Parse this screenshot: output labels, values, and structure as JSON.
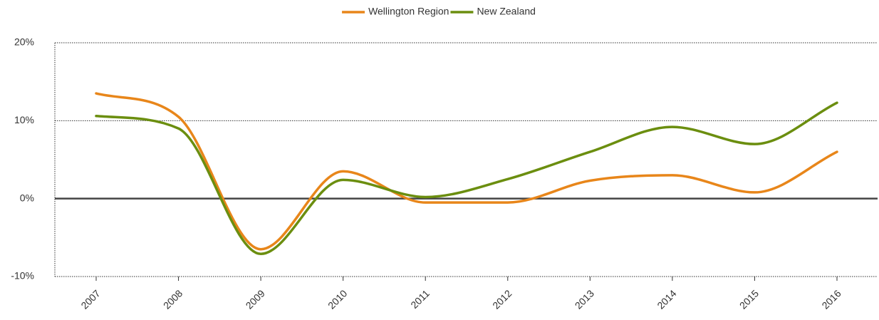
{
  "chart_data": {
    "type": "line",
    "categories": [
      "2007",
      "2008",
      "2009",
      "2010",
      "2011",
      "2012",
      "2013",
      "2014",
      "2015",
      "2016"
    ],
    "series": [
      {
        "name": "Wellington Region",
        "color": "#e8861a",
        "values": [
          13.5,
          10.5,
          -6.5,
          3.5,
          -0.5,
          -0.5,
          2.3,
          3,
          0.8,
          6
        ]
      },
      {
        "name": "New Zealand",
        "color": "#6b8e0f",
        "values": [
          10.6,
          9,
          -7.1,
          2.4,
          0.2,
          2.5,
          6,
          9.2,
          7,
          12.3
        ]
      }
    ],
    "ylim": [
      -10,
      20
    ],
    "yticks": [
      {
        "value": -10,
        "label": "-10%"
      },
      {
        "value": 0,
        "label": "0%"
      },
      {
        "value": 10,
        "label": "10%"
      },
      {
        "value": 20,
        "label": "20%"
      }
    ],
    "grid": true,
    "legend": "top"
  }
}
